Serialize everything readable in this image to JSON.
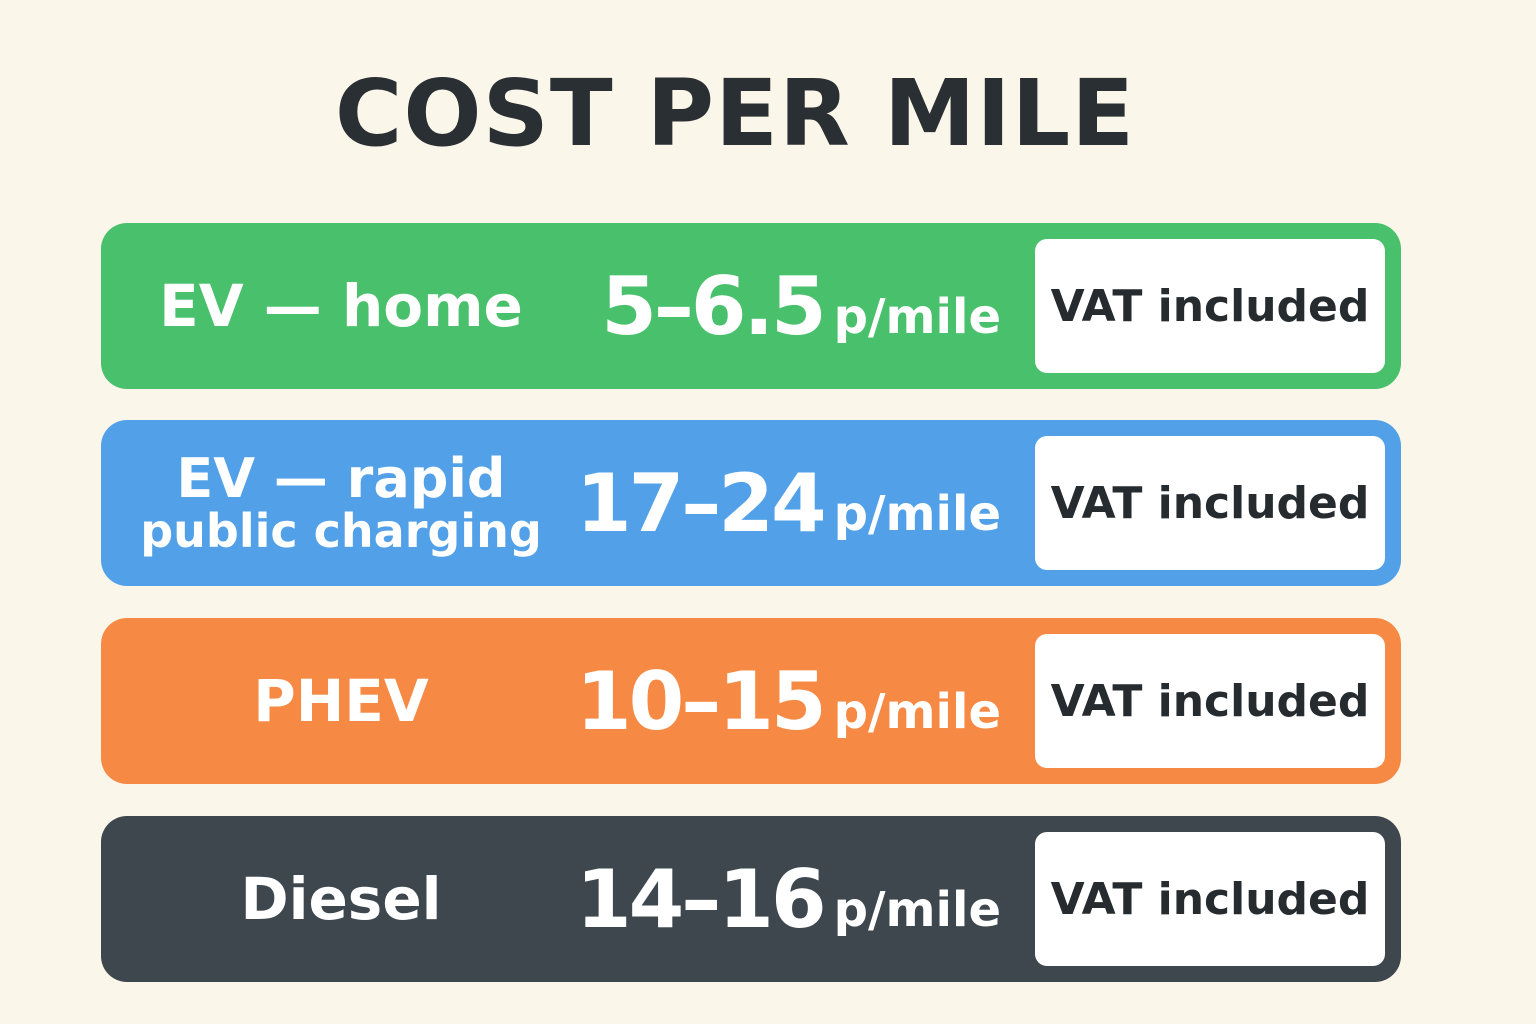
{
  "title": "COST PER MILE",
  "rows": [
    {
      "label": [
        "EV — home"
      ],
      "range": "5–6.5",
      "unit": "p/mile",
      "note": "VAT included"
    },
    {
      "label": [
        "EV — rapid",
        "public charging"
      ],
      "range": "17–24",
      "unit": "p/mile",
      "note": "VAT included"
    },
    {
      "label": [
        "PHEV"
      ],
      "range": "10–15",
      "unit": "p/mile",
      "note": "VAT included"
    },
    {
      "label": [
        "Diesel"
      ],
      "range": "14–16",
      "unit": "p/mile",
      "note": "VAT included"
    }
  ]
}
